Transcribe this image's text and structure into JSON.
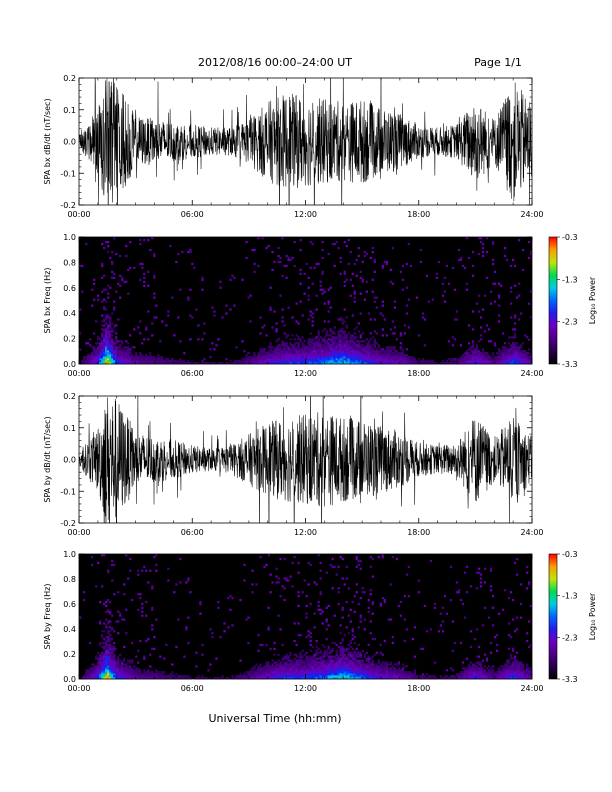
{
  "header": {
    "title": "2012/08/16  00:00–24:00 UT",
    "page": "Page 1/1"
  },
  "footer": {
    "xlabel": "Universal Time (hh:mm)"
  },
  "chart_data": [
    {
      "type": "line",
      "ylabel": "SPA bx dB/dt (nT/sec)",
      "xlim": [
        0,
        24
      ],
      "ylim": [
        -0.2,
        0.2
      ],
      "xticks": [
        "00:00",
        "06:00",
        "12:00",
        "18:00",
        "24:00"
      ],
      "yticks": [
        "-0.2",
        "-0.1",
        "0.0",
        "0.1",
        "0.2"
      ],
      "series": [
        {
          "x": [
            0,
            1,
            1.5,
            2,
            3,
            4,
            5,
            6,
            7,
            8,
            9,
            10,
            11,
            12,
            13,
            14,
            15,
            16,
            17,
            18,
            19,
            20,
            21,
            22,
            23,
            24
          ],
          "envelope": [
            0.02,
            0.12,
            0.24,
            0.22,
            0.09,
            0.08,
            0.07,
            0.06,
            0.05,
            0.05,
            0.08,
            0.14,
            0.17,
            0.16,
            0.15,
            0.14,
            0.15,
            0.12,
            0.1,
            0.06,
            0.05,
            0.06,
            0.15,
            0.08,
            0.22,
            0.13
          ]
        }
      ]
    },
    {
      "type": "heatmap",
      "ylabel": "SPA bx Freq (Hz)",
      "xlim": [
        0,
        24
      ],
      "ylim": [
        0,
        1.0
      ],
      "xticks": [
        "00:00",
        "06:00",
        "12:00",
        "18:00",
        "24:00"
      ],
      "yticks": [
        "0.0",
        "0.2",
        "0.4",
        "0.6",
        "0.8",
        "1.0"
      ],
      "colorbar": {
        "label": "Log₁₀ Power",
        "range": [
          -3.3,
          -0.3
        ],
        "ticks": [
          "-0.3",
          "-1.3",
          "-2.3",
          "-3.3"
        ]
      },
      "activity": {
        "x": [
          0,
          1,
          1.5,
          2,
          3,
          4,
          5,
          6,
          7,
          8,
          9,
          10,
          11,
          12,
          13,
          14,
          15,
          16,
          17,
          18,
          19,
          20,
          21,
          22,
          23,
          24
        ],
        "level": [
          0.1,
          0.5,
          1.0,
          0.5,
          0.3,
          0.25,
          0.2,
          0.15,
          0.15,
          0.15,
          0.25,
          0.4,
          0.5,
          0.5,
          0.6,
          0.7,
          0.55,
          0.4,
          0.35,
          0.2,
          0.15,
          0.2,
          0.45,
          0.25,
          0.55,
          0.3
        ]
      }
    },
    {
      "type": "line",
      "ylabel": "SPA by dB/dt (nT/sec)",
      "xlim": [
        0,
        24
      ],
      "ylim": [
        -0.2,
        0.2
      ],
      "xticks": [
        "00:00",
        "06:00",
        "12:00",
        "18:00",
        "24:00"
      ],
      "yticks": [
        "-0.2",
        "-0.1",
        "0.0",
        "0.1",
        "0.2"
      ],
      "series": [
        {
          "x": [
            0,
            1,
            1.5,
            2,
            3,
            4,
            5,
            6,
            7,
            8,
            9,
            10,
            11,
            12,
            13,
            14,
            15,
            16,
            17,
            18,
            19,
            20,
            21,
            22,
            23,
            24
          ],
          "envelope": [
            0.02,
            0.12,
            0.24,
            0.22,
            0.1,
            0.08,
            0.07,
            0.05,
            0.04,
            0.05,
            0.09,
            0.13,
            0.15,
            0.16,
            0.17,
            0.15,
            0.14,
            0.12,
            0.1,
            0.06,
            0.05,
            0.06,
            0.16,
            0.08,
            0.15,
            0.08
          ]
        }
      ]
    },
    {
      "type": "heatmap",
      "ylabel": "SPA by Freq (Hz)",
      "xlim": [
        0,
        24
      ],
      "ylim": [
        0,
        1.0
      ],
      "xticks": [
        "00:00",
        "06:00",
        "12:00",
        "18:00",
        "24:00"
      ],
      "yticks": [
        "0.0",
        "0.2",
        "0.4",
        "0.6",
        "0.8",
        "1.0"
      ],
      "colorbar": {
        "label": "Log₁₀ Power",
        "range": [
          -3.3,
          -0.3
        ],
        "ticks": [
          "-0.3",
          "-1.3",
          "-2.3",
          "-3.3"
        ]
      },
      "activity": {
        "x": [
          0,
          1,
          1.5,
          2,
          3,
          4,
          5,
          6,
          7,
          8,
          9,
          10,
          11,
          12,
          13,
          14,
          15,
          16,
          17,
          18,
          19,
          20,
          21,
          22,
          23,
          24
        ],
        "level": [
          0.1,
          0.5,
          1.0,
          0.5,
          0.3,
          0.25,
          0.2,
          0.15,
          0.15,
          0.15,
          0.25,
          0.4,
          0.5,
          0.5,
          0.6,
          0.7,
          0.55,
          0.4,
          0.35,
          0.2,
          0.15,
          0.2,
          0.45,
          0.25,
          0.5,
          0.3
        ]
      }
    }
  ]
}
